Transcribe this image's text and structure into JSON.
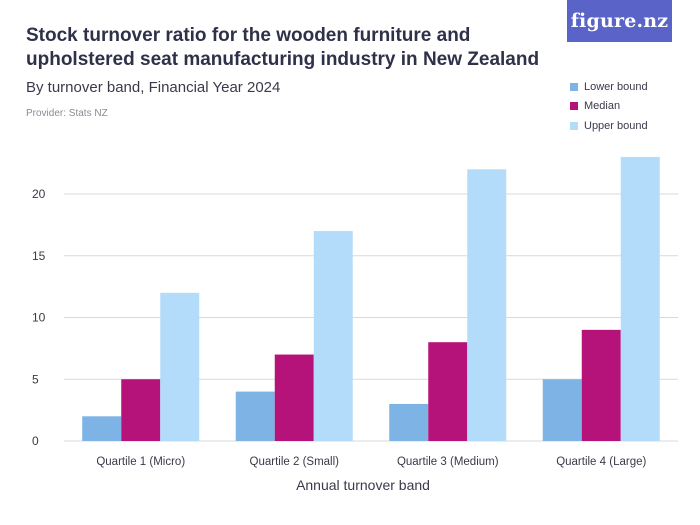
{
  "header": {
    "title": "Stock turnover ratio for the wooden furniture and upholstered seat manufacturing industry in New Zealand",
    "subtitle": "By turnover band, Financial Year 2024",
    "provider": "Provider: Stats NZ",
    "logo_text": "figure.nz"
  },
  "colors": {
    "lower": "#7db3e5",
    "median": "#b5137a",
    "upper": "#b3dcfb",
    "grid": "#d9d9d9",
    "logo_bg": "#5a64c8"
  },
  "chart_data": {
    "type": "bar",
    "xlabel": "Annual turnover band",
    "ylabel": "",
    "ylim": [
      0,
      24
    ],
    "yticks": [
      0,
      5,
      10,
      15,
      20
    ],
    "grid": true,
    "legend_position": "top-right",
    "categories": [
      "Quartile 1 (Micro)",
      "Quartile 2 (Small)",
      "Quartile 3 (Medium)",
      "Quartile 4 (Large)"
    ],
    "series": [
      {
        "name": "Lower bound",
        "color_key": "lower",
        "values": [
          2,
          4,
          3,
          5
        ]
      },
      {
        "name": "Median",
        "color_key": "median",
        "values": [
          5,
          7,
          8,
          9
        ]
      },
      {
        "name": "Upper bound",
        "color_key": "upper",
        "values": [
          12,
          17,
          22,
          23
        ]
      }
    ]
  }
}
